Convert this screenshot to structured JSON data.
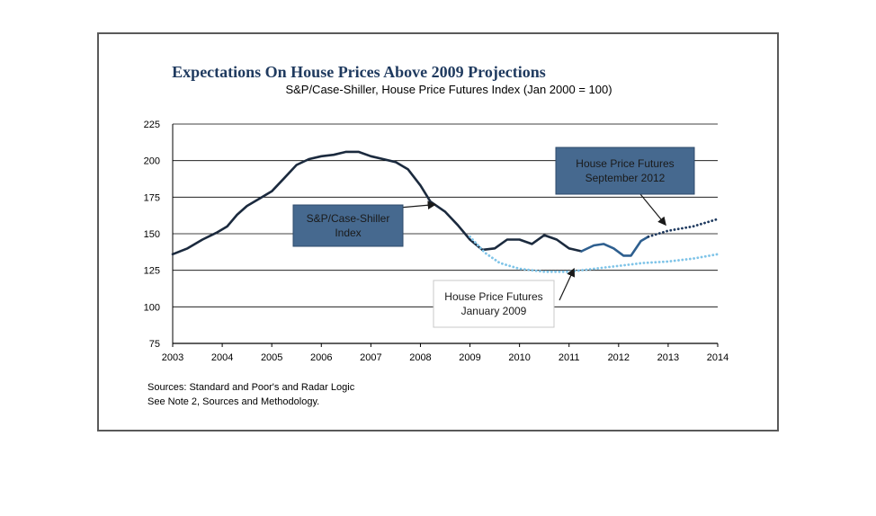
{
  "chart_data": {
    "type": "line",
    "title": "Expectations On House Prices Above 2009 Projections",
    "subtitle": "S&P/Case-Shiller, House Price Futures Index (Jan 2000 = 100)",
    "x_ticks": [
      "2003",
      "2004",
      "2005",
      "2006",
      "2007",
      "2008",
      "2009",
      "2010",
      "2011",
      "2012",
      "2013",
      "2014"
    ],
    "x_range": [
      2003,
      2014
    ],
    "y_ticks": [
      75,
      100,
      125,
      150,
      175,
      200,
      225
    ],
    "y_range": [
      75,
      225
    ],
    "grid": "horizontal",
    "series": [
      {
        "id": "index",
        "color": "#1b2a3e",
        "style": "solid",
        "points": [
          [
            2003.0,
            136
          ],
          [
            2003.3,
            140
          ],
          [
            2003.6,
            146
          ],
          [
            2003.9,
            151
          ],
          [
            2004.1,
            155
          ],
          [
            2004.3,
            163
          ],
          [
            2004.5,
            169
          ],
          [
            2004.75,
            174
          ],
          [
            2005.0,
            179
          ],
          [
            2005.25,
            188
          ],
          [
            2005.5,
            197
          ],
          [
            2005.75,
            201
          ],
          [
            2006.0,
            203
          ],
          [
            2006.25,
            204
          ],
          [
            2006.5,
            206
          ],
          [
            2006.75,
            206
          ],
          [
            2007.0,
            203
          ],
          [
            2007.25,
            201
          ],
          [
            2007.5,
            199
          ],
          [
            2007.75,
            194
          ],
          [
            2008.0,
            183
          ],
          [
            2008.2,
            172
          ],
          [
            2008.5,
            165
          ],
          [
            2008.75,
            156
          ],
          [
            2009.0,
            146
          ],
          [
            2009.25,
            139
          ],
          [
            2009.5,
            140
          ],
          [
            2009.75,
            146
          ],
          [
            2010.0,
            146
          ],
          [
            2010.25,
            143
          ],
          [
            2010.5,
            149
          ],
          [
            2010.75,
            146
          ],
          [
            2011.0,
            140
          ],
          [
            2011.25,
            138
          ]
        ]
      },
      {
        "id": "index-recent",
        "color": "#2e5f8f",
        "style": "solid",
        "points": [
          [
            2011.25,
            138
          ],
          [
            2011.5,
            142
          ],
          [
            2011.7,
            143
          ],
          [
            2011.9,
            140
          ],
          [
            2012.1,
            135
          ],
          [
            2012.25,
            135
          ],
          [
            2012.45,
            145
          ],
          [
            2012.6,
            148
          ]
        ]
      },
      {
        "id": "futures-jan-2009",
        "color": "#7fc4e8",
        "style": "dotted",
        "points": [
          [
            2009.0,
            148
          ],
          [
            2009.3,
            137
          ],
          [
            2009.6,
            130
          ],
          [
            2010.0,
            126
          ],
          [
            2010.5,
            124
          ],
          [
            2011.0,
            124
          ],
          [
            2011.5,
            126
          ],
          [
            2012.0,
            128
          ],
          [
            2012.5,
            130
          ],
          [
            2013.0,
            131
          ],
          [
            2013.5,
            133
          ],
          [
            2014.0,
            136
          ]
        ]
      },
      {
        "id": "futures-sep-2012",
        "color": "#1f3a5f",
        "style": "dotted",
        "points": [
          [
            2012.6,
            148
          ],
          [
            2013.0,
            152
          ],
          [
            2013.5,
            155
          ],
          [
            2014.0,
            160
          ]
        ]
      }
    ],
    "annotations": [
      {
        "id": "callout-index",
        "lines": [
          "S&P/Case-Shiller",
          "Index"
        ],
        "arrow_to": [
          2008.3,
          170
        ]
      },
      {
        "id": "callout-sep-2012",
        "lines": [
          "House Price Futures",
          "September 2012"
        ],
        "arrow_to": [
          2012.95,
          156
        ]
      },
      {
        "id": "callout-jan-2009",
        "lines": [
          "House Price Futures",
          "January 2009"
        ],
        "arrow_to": [
          2011.1,
          126
        ]
      }
    ],
    "sources": [
      "Sources:  Standard and Poor's and Radar Logic",
      "See Note 2, Sources and Methodology."
    ]
  }
}
